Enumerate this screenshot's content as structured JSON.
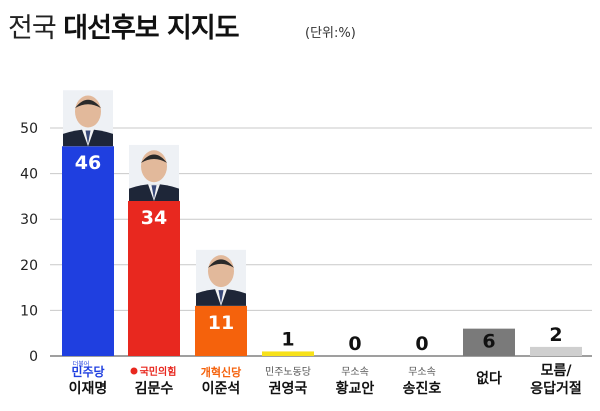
{
  "header": {
    "title_light": "전국",
    "title_bold": "대선후보 지지도",
    "unit": "(단위:%)"
  },
  "chart_data": {
    "type": "bar",
    "title": "전국 대선후보 지지도",
    "unit": "(단위:%)",
    "ylim": [
      0,
      50
    ],
    "yticks": [
      0,
      10,
      20,
      30,
      40,
      50
    ],
    "grid": true,
    "categories": [
      {
        "party": "더불어 민주당",
        "name": "이재명",
        "value": 46,
        "color": "#1f3fe0",
        "label_color": "#ffffff",
        "party_style": "logo-minju",
        "photo": true
      },
      {
        "party": "국민의힘",
        "name": "김문수",
        "value": 34,
        "color": "#e8281f",
        "label_color": "#ffffff",
        "party_style": "logo-ppp",
        "photo": true
      },
      {
        "party": "개혁신당",
        "name": "이준석",
        "value": 11,
        "color": "#f5620c",
        "label_color": "#ffffff",
        "party_style": "logo-reform",
        "photo": true
      },
      {
        "party": "민주노동당",
        "name": "권영국",
        "value": 1,
        "color": "#f7e11a",
        "label_color": "#111111",
        "party_style": "text",
        "photo": false
      },
      {
        "party": "무소속",
        "name": "황교안",
        "value": 0,
        "color": "#cccccc",
        "label_color": "#111111",
        "party_style": "text",
        "photo": false
      },
      {
        "party": "무소속",
        "name": "송진호",
        "value": 0,
        "color": "#cccccc",
        "label_color": "#111111",
        "party_style": "text",
        "photo": false
      },
      {
        "party": "",
        "name": "없다",
        "value": 6,
        "color": "#7a7a7a",
        "label_color": "#111111",
        "party_style": "none",
        "photo": false
      },
      {
        "party": "",
        "name": "모름/ 응답거절",
        "value": 2,
        "color": "#cfcfcf",
        "label_color": "#111111",
        "party_style": "none",
        "photo": false
      }
    ]
  }
}
